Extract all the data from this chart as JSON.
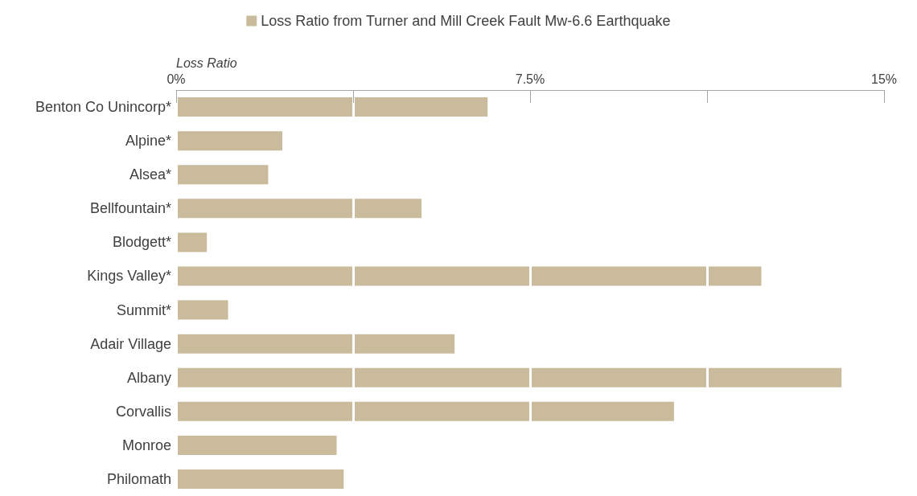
{
  "chart_data": {
    "type": "bar",
    "orientation": "horizontal",
    "xlabel": "Loss Ratio",
    "categories": [
      "Benton Co Unincorp*",
      "Alpine*",
      "Alsea*",
      "Bellfountain*",
      "Blodgett*",
      "Kings Valley*",
      "Summit*",
      "Adair Village",
      "Albany",
      "Corvallis",
      "Monroe",
      "Philomath"
    ],
    "series": [
      {
        "name": "Loss Ratio from Turner and Mill Creek Fault Mw-6.6 Earthquake",
        "color": "#c9bb9c",
        "values": [
          6.6,
          2.25,
          1.95,
          5.2,
          0.65,
          12.4,
          1.1,
          5.9,
          14.1,
          10.55,
          3.4,
          3.55
        ]
      }
    ],
    "xlim": [
      0,
      15
    ],
    "xticks": [
      {
        "value": 0,
        "label": "0%"
      },
      {
        "value": 3.75,
        "label": null
      },
      {
        "value": 7.5,
        "label": "7.5%"
      },
      {
        "value": 11.25,
        "label": null
      },
      {
        "value": 15,
        "label": "15%"
      }
    ],
    "grid": "x",
    "legend": "top"
  }
}
